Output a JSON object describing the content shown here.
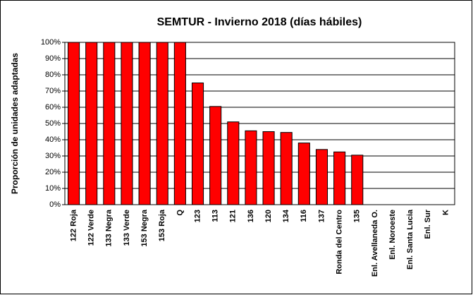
{
  "chart_data": {
    "type": "bar",
    "title": "SEMTUR - Invierno 2018 (días hábiles)",
    "y_label": "Proporción de unidades adaptadas",
    "categories": [
      "122 Roja",
      "122 Verde",
      "133 Negra",
      "133 Verde",
      "153 Negra",
      "153 Roja",
      "Q",
      "123",
      "113",
      "121",
      "136",
      "120",
      "134",
      "116",
      "137",
      "Ronda del Centro",
      "135",
      "Enl. Avellaneda O.",
      "Enl. Noroeste",
      "Enl. Santa Lucia",
      "Enl. Sur",
      "K"
    ],
    "values": [
      100,
      100,
      100,
      100,
      100,
      100,
      100,
      75,
      60.5,
      51,
      45.5,
      45,
      44.5,
      38,
      34,
      32.5,
      30.5,
      0,
      0,
      0,
      0,
      0
    ],
    "color": "#ff0000",
    "ylim": [
      0,
      100
    ],
    "yticks": [
      {
        "value": 0,
        "label": "0%"
      },
      {
        "value": 10,
        "label": "10%"
      },
      {
        "value": 20,
        "label": "20%"
      },
      {
        "value": 30,
        "label": "30%"
      },
      {
        "value": 40,
        "label": "40%"
      },
      {
        "value": 50,
        "label": "50%"
      },
      {
        "value": 60,
        "label": "60%"
      },
      {
        "value": 70,
        "label": "70%"
      },
      {
        "value": 80,
        "label": "80%"
      },
      {
        "value": 90,
        "label": "90%"
      },
      {
        "value": 100,
        "label": "100%"
      }
    ],
    "grid": true
  }
}
